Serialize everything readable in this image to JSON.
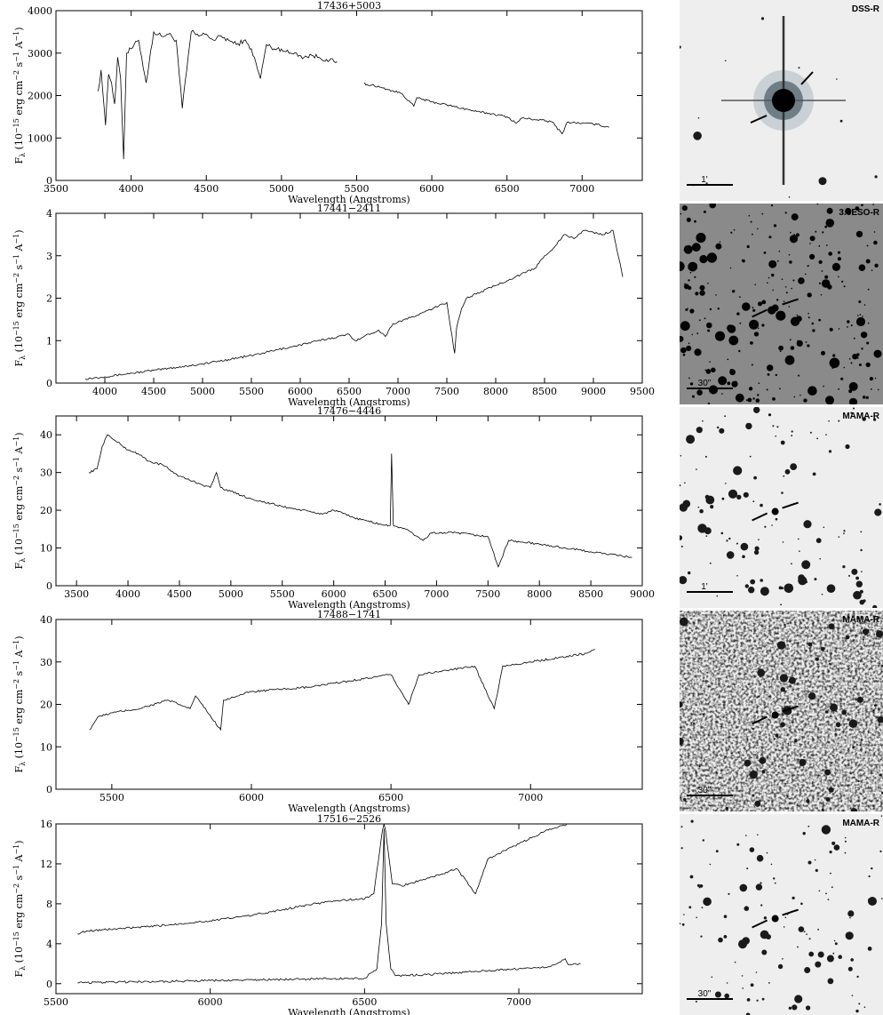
{
  "chart_data": [
    {
      "type": "line",
      "title": "17436+5003",
      "xlabel": "Wavelength (Angstroms)",
      "ylabel_parts": [
        "F",
        "λ",
        " (10",
        "−15",
        " erg cm",
        "−2",
        " s",
        "−1",
        " A",
        "−1",
        ")"
      ],
      "xlim": [
        3500,
        7400
      ],
      "ylim": [
        0,
        4000
      ],
      "xticks": [
        3500,
        4000,
        4500,
        5000,
        5500,
        6000,
        6500,
        7000
      ],
      "yticks": [
        0,
        1000,
        2000,
        3000,
        4000
      ],
      "series": [
        {
          "x": [
            3780,
            3800,
            3830,
            3850,
            3870,
            3890,
            3910,
            3930,
            3950,
            3970,
            4000,
            4050,
            4100,
            4150,
            4200,
            4250,
            4300,
            4340,
            4400,
            4450,
            4500,
            4550,
            4600,
            4650,
            4700,
            4750,
            4800,
            4860,
            4900,
            4950,
            5000,
            5050,
            5100,
            5150,
            5200,
            5250,
            5300,
            5350,
            5370
          ],
          "y": [
            2100,
            2600,
            1300,
            2500,
            2300,
            1800,
            2900,
            2400,
            500,
            3000,
            3100,
            3300,
            2300,
            3500,
            3400,
            3450,
            3300,
            1700,
            3500,
            3400,
            3450,
            3300,
            3400,
            3300,
            3200,
            3300,
            3100,
            2400,
            3200,
            3100,
            3100,
            3000,
            3000,
            2900,
            2950,
            2900,
            2850,
            2800,
            2800
          ]
        },
        {
          "x": [
            5550,
            5560,
            5600,
            5700,
            5800,
            5880,
            5900,
            6000,
            6100,
            6200,
            6300,
            6400,
            6500,
            6563,
            6600,
            6700,
            6800,
            6867,
            6900,
            7000,
            7100,
            7180
          ],
          "y": [
            2300,
            2250,
            2250,
            2150,
            2050,
            1750,
            1950,
            1850,
            1780,
            1700,
            1620,
            1570,
            1500,
            1350,
            1470,
            1430,
            1380,
            1100,
            1370,
            1350,
            1320,
            1250
          ]
        }
      ]
    },
    {
      "type": "line",
      "title": "17441−2411",
      "xlabel": "Wavelength (Angstroms)",
      "ylabel_parts": [
        "F",
        "λ",
        " (10",
        "−15",
        " erg cm",
        "−2",
        " s",
        "−1",
        " A",
        "−1",
        ")"
      ],
      "xlim": [
        3500,
        9500
      ],
      "ylim": [
        0,
        4
      ],
      "xticks": [
        4000,
        4500,
        5000,
        5500,
        6000,
        6500,
        7000,
        7500,
        8000,
        8500,
        9000,
        9500
      ],
      "yticks": [
        0,
        1,
        2,
        3,
        4
      ],
      "series": [
        {
          "x": [
            3800,
            4000,
            4500,
            5000,
            5500,
            6000,
            6500,
            6563,
            6800,
            6870,
            6950,
            7200,
            7500,
            7580,
            7600,
            7650,
            7700,
            8000,
            8200,
            8400,
            8500,
            8600,
            8700,
            8800,
            8900,
            9000,
            9100,
            9200,
            9300
          ],
          "y": [
            0.1,
            0.15,
            0.3,
            0.45,
            0.65,
            0.9,
            1.15,
            1.0,
            1.25,
            1.1,
            1.4,
            1.6,
            1.9,
            0.7,
            1.3,
            1.75,
            2.0,
            2.3,
            2.5,
            2.7,
            3.0,
            3.2,
            3.5,
            3.4,
            3.6,
            3.55,
            3.5,
            3.6,
            2.5
          ]
        }
      ]
    },
    {
      "type": "line",
      "title": "17476−4446",
      "xlabel": "Wavelength (Angstroms)",
      "ylabel_parts": [
        "F",
        "λ",
        " (10",
        "−15",
        " erg cm",
        "−2",
        " s",
        "−1",
        " A",
        "−1",
        ")"
      ],
      "xlim": [
        3300,
        9000
      ],
      "ylim": [
        0,
        45
      ],
      "xticks": [
        3500,
        4000,
        4500,
        5000,
        5500,
        6000,
        6500,
        7000,
        7500,
        8000,
        8500,
        9000
      ],
      "yticks": [
        0,
        10,
        20,
        30,
        40
      ],
      "series": [
        {
          "x": [
            3620,
            3700,
            3750,
            3800,
            3900,
            4000,
            4100,
            4200,
            4340,
            4500,
            4700,
            4800,
            4861,
            4900,
            5000,
            5200,
            5500,
            5890,
            6000,
            6200,
            6500,
            6550,
            6563,
            6580,
            6700,
            6870,
            6950,
            7200,
            7500,
            7600,
            7700,
            8000,
            8500,
            8900
          ],
          "y": [
            30,
            31,
            37,
            40,
            38,
            36,
            35,
            33,
            32,
            29,
            27,
            26,
            30,
            26,
            25,
            23,
            21,
            19,
            20,
            18,
            16,
            16,
            35,
            16,
            15,
            12,
            14,
            14,
            13,
            5,
            12,
            11,
            9,
            7.5
          ]
        }
      ]
    },
    {
      "type": "line",
      "title": "17488−1741",
      "xlabel": "Wavelength (Angstroms)",
      "ylabel_parts": [
        "F",
        "λ",
        " (10",
        "−15",
        " erg cm",
        "−2",
        " s",
        "−1",
        " A",
        "−1",
        ")"
      ],
      "xlim": [
        5300,
        7400
      ],
      "ylim": [
        0,
        40
      ],
      "xticks": [
        5500,
        6000,
        6500,
        7000
      ],
      "yticks": [
        0,
        10,
        20,
        30,
        40
      ],
      "series": [
        {
          "x": [
            5420,
            5450,
            5500,
            5600,
            5700,
            5780,
            5800,
            5890,
            5900,
            5950,
            6000,
            6100,
            6200,
            6300,
            6400,
            6500,
            6563,
            6600,
            6700,
            6800,
            6870,
            6900,
            7000,
            7100,
            7200,
            7230
          ],
          "y": [
            14,
            17,
            18,
            19,
            21,
            19,
            22,
            14,
            21,
            22,
            23,
            23.5,
            24,
            25,
            26,
            27,
            20,
            27,
            28,
            29,
            19,
            29,
            30,
            31,
            32,
            33
          ]
        }
      ]
    },
    {
      "type": "line",
      "title": "17516−2526",
      "xlabel": "Wavelength (Angstroms)",
      "ylabel_parts": [
        "F",
        "λ",
        " (10",
        "−15",
        " erg cm",
        "−2",
        " s",
        "−1",
        " A",
        "−1",
        ")"
      ],
      "xlim": [
        5500,
        7400
      ],
      "ylim": [
        -1,
        16
      ],
      "xticks": [
        5500,
        6000,
        6500,
        7000
      ],
      "yticks": [
        0,
        4,
        8,
        12,
        16
      ],
      "series": [
        {
          "x": [
            5570,
            5600,
            5700,
            5800,
            5900,
            6000,
            6100,
            6200,
            6300,
            6400,
            6450,
            6500,
            6530,
            6563,
            6590,
            6620,
            6700,
            6800,
            6860,
            6900,
            7000,
            7100,
            7160
          ],
          "y": [
            5,
            5.3,
            5.5,
            5.7,
            6,
            6.3,
            6.7,
            7.2,
            7.8,
            8.3,
            8.4,
            8.5,
            9,
            16.5,
            10,
            9.8,
            10.5,
            11.5,
            9,
            12.5,
            14,
            15.5,
            16
          ]
        },
        {
          "x": [
            5570,
            5600,
            5700,
            5800,
            5900,
            6000,
            6100,
            6200,
            6300,
            6400,
            6500,
            6540,
            6555,
            6563,
            6570,
            6585,
            6600,
            6700,
            6800,
            6900,
            7000,
            7100,
            7150,
            7160,
            7200
          ],
          "y": [
            0.1,
            0.1,
            0.15,
            0.2,
            0.25,
            0.3,
            0.35,
            0.4,
            0.45,
            0.5,
            0.55,
            1.5,
            6,
            15.5,
            6,
            1.5,
            0.8,
            0.9,
            1.1,
            1.3,
            1.5,
            1.7,
            2.5,
            1.9,
            2.0
          ]
        }
      ]
    }
  ],
  "finding_charts": [
    {
      "label": "DSS-R",
      "scale": "1'",
      "style": "light"
    },
    {
      "label": "3.6ESO-R",
      "scale": "30\"",
      "style": "dark"
    },
    {
      "label": "MAMA-R",
      "scale": "1'",
      "style": "light"
    },
    {
      "label": "MAMA-R",
      "scale": "30\"",
      "style": "grainy"
    },
    {
      "label": "MAMA-R",
      "scale": "30\"",
      "style": "light"
    }
  ]
}
